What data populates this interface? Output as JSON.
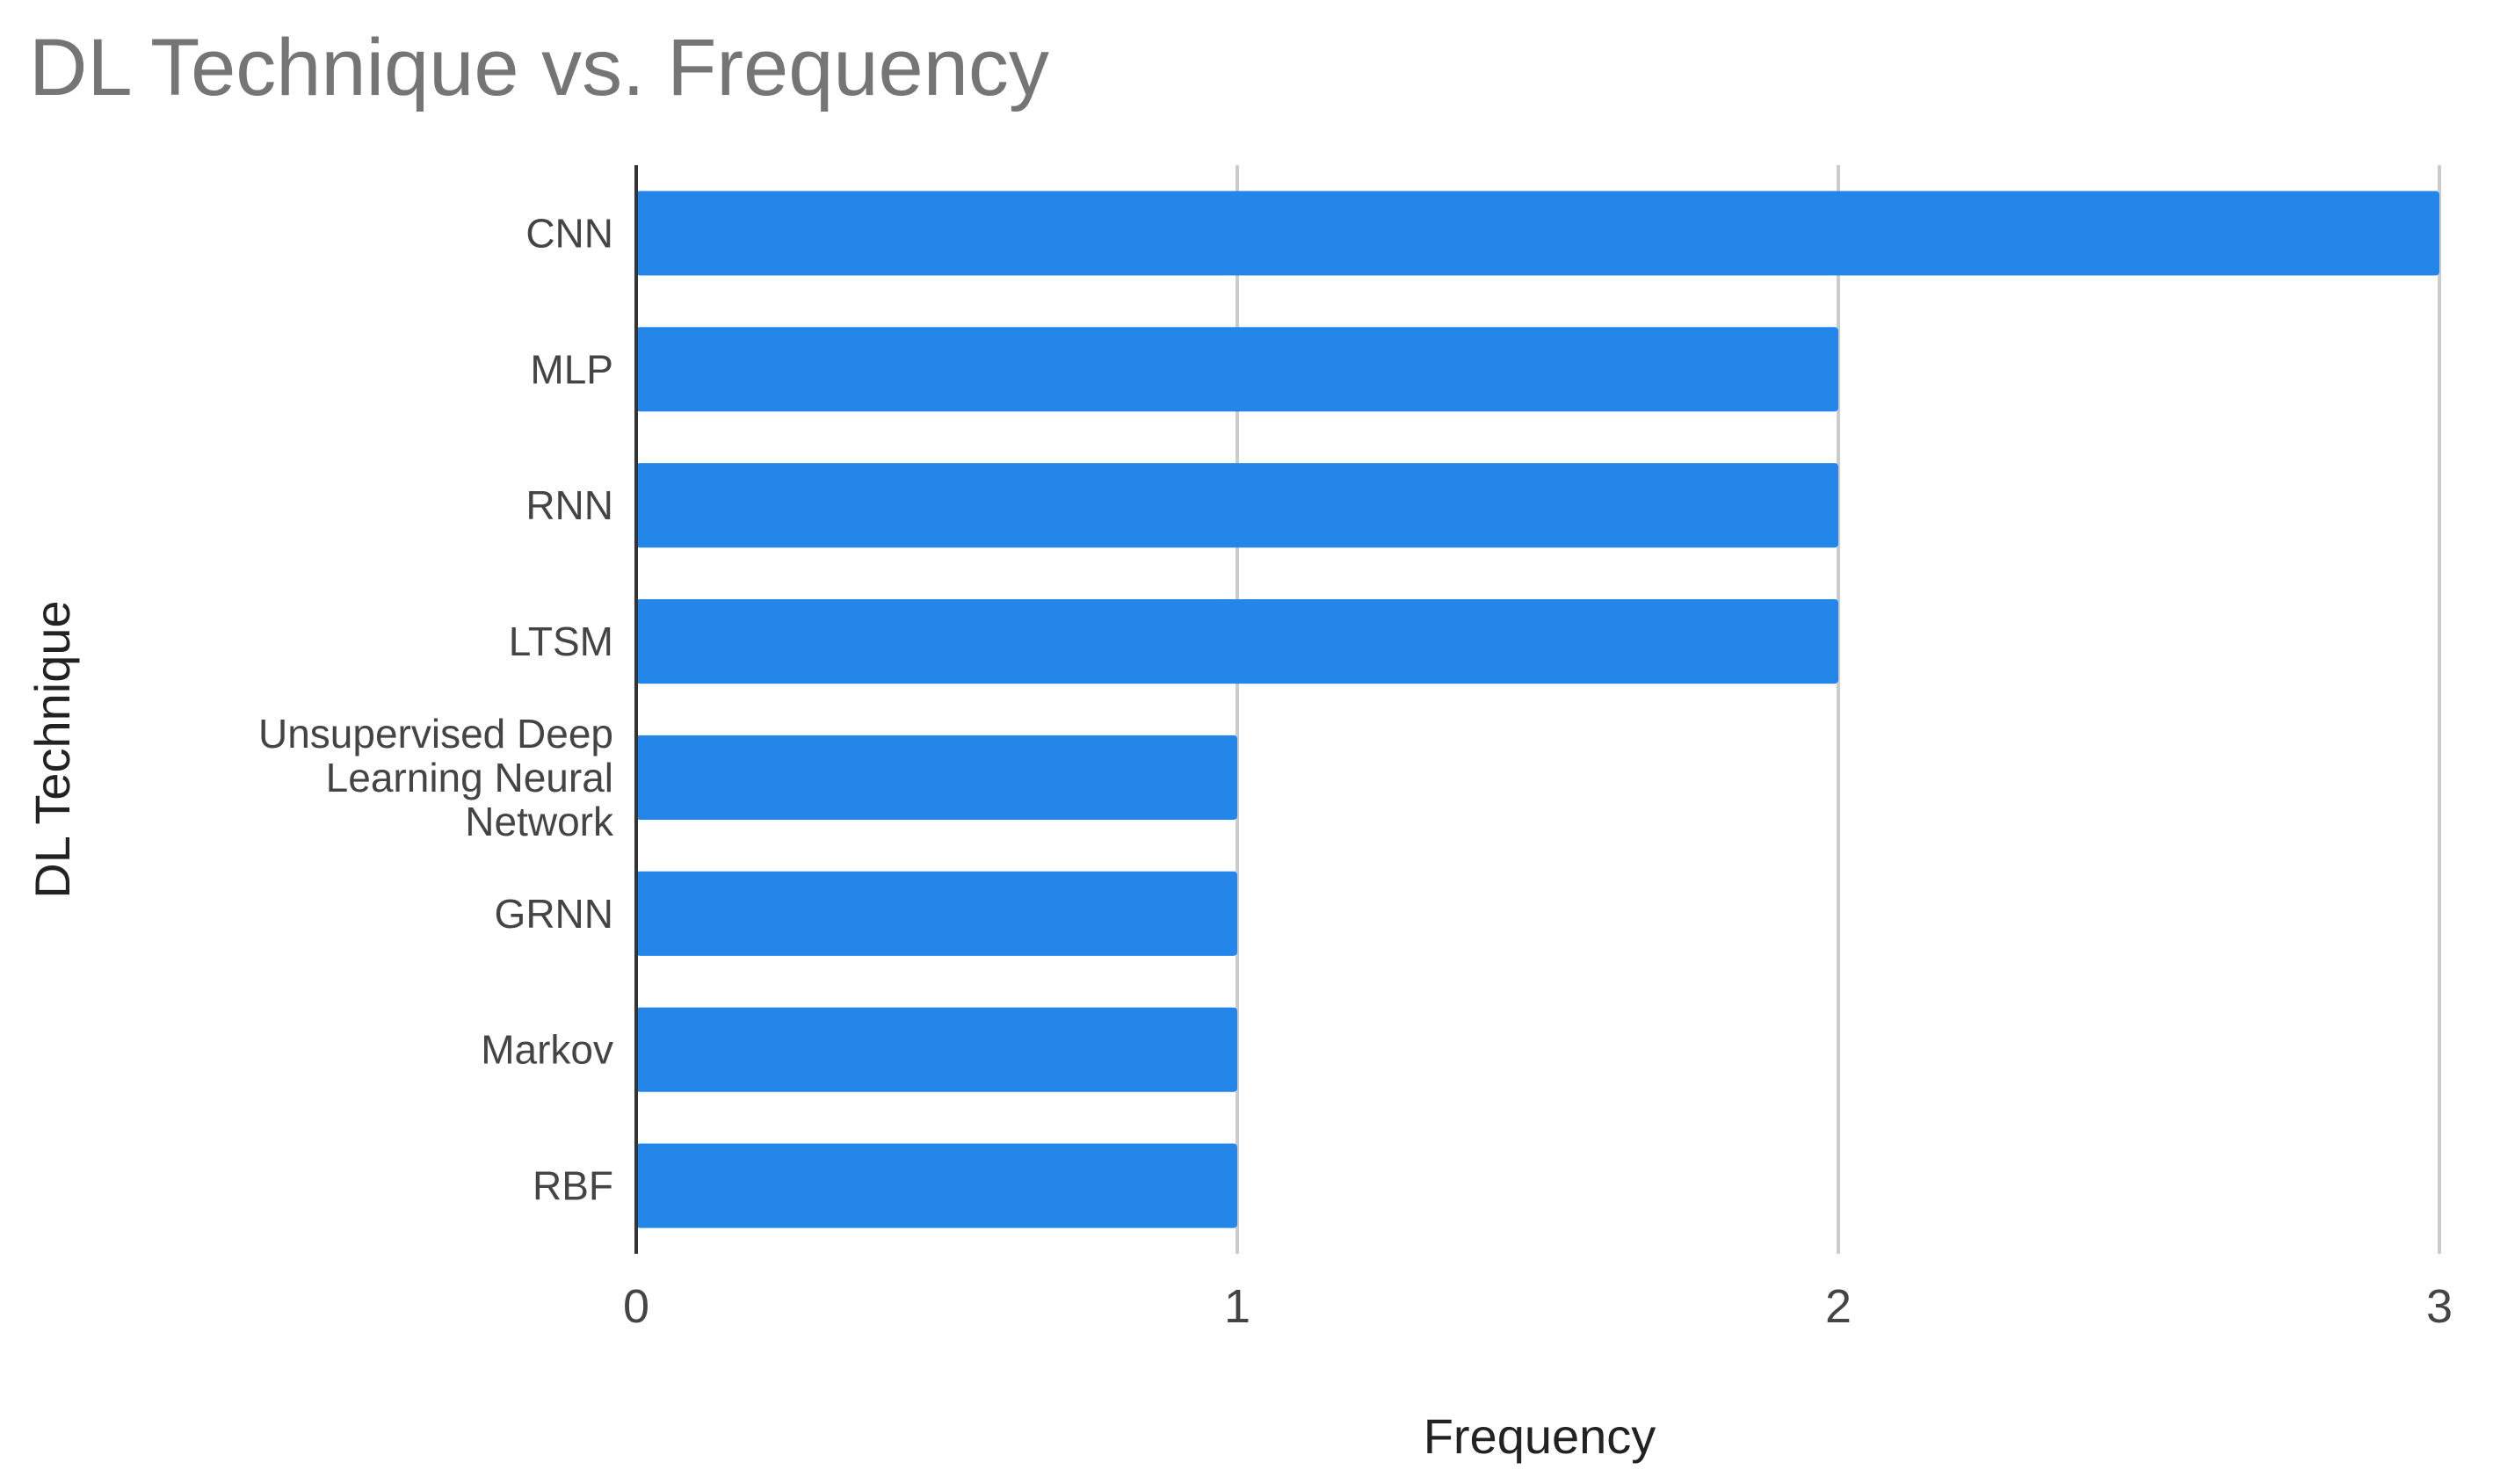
{
  "chart_data": {
    "type": "bar",
    "orientation": "horizontal",
    "title": "DL Technique vs. Frequency",
    "xlabel": "Frequency",
    "ylabel": "DL Technique",
    "categories": [
      "CNN",
      "MLP",
      "RNN",
      "LTSM",
      "Unsupervised Deep Learning Neural Network",
      "GRNN",
      "Markov",
      "RBF"
    ],
    "category_label_lines": [
      [
        "CNN"
      ],
      [
        "MLP"
      ],
      [
        "RNN"
      ],
      [
        "LTSM"
      ],
      [
        "Unsupervised Deep",
        "Learning Neural",
        "Network"
      ],
      [
        "GRNN"
      ],
      [
        "Markov"
      ],
      [
        "RBF"
      ]
    ],
    "values": [
      3,
      2,
      2,
      2,
      1,
      1,
      1,
      1
    ],
    "xlim": [
      0,
      3
    ],
    "xticks": [
      "0",
      "1",
      "2",
      "3"
    ],
    "grid": true,
    "legend": "none",
    "bar_color": "#2586ea",
    "title_color": "#757575"
  }
}
